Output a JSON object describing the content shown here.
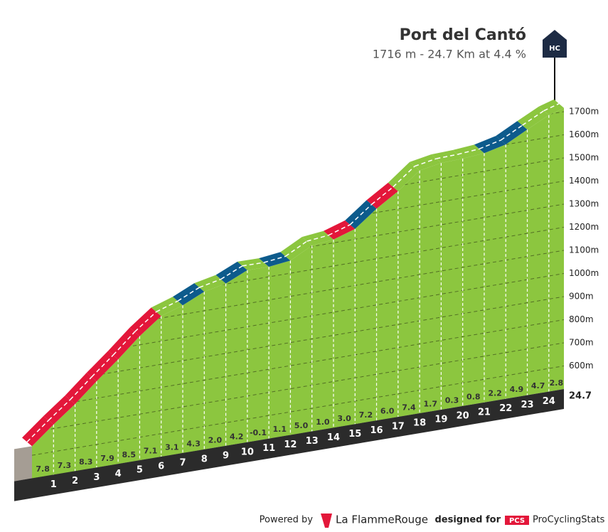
{
  "chart_data": {
    "type": "climb-profile",
    "title": "Port del Cantó",
    "subtitle": "1716 m - 24.7 Km at 4.4 %",
    "category": "HC",
    "summit_elevation": 1716,
    "distance": 24.7,
    "distance_label": "24.7",
    "km": [
      1,
      2,
      3,
      4,
      5,
      6,
      7,
      8,
      9,
      10,
      11,
      12,
      13,
      14,
      15,
      16,
      17,
      18,
      19,
      20,
      21,
      22,
      23,
      24
    ],
    "values": [
      7.8,
      7.3,
      8.3,
      7.9,
      8.5,
      7.1,
      3.1,
      4.3,
      2.0,
      4.2,
      -0.1,
      1.1,
      5.0,
      1.0,
      3.0,
      7.2,
      6.0,
      7.4,
      1.7,
      0.3,
      0.8,
      2.2,
      4.9,
      4.7,
      2.8
    ],
    "value_labels": [
      "7.8",
      "7.3",
      "8.3",
      "7.9",
      "8.5",
      "7.1",
      "3.1",
      "4.3",
      "2.0",
      "4.2",
      "-0.1",
      "1.1",
      "5.0",
      "1.0",
      "3.0",
      "7.2",
      "6.0",
      "7.4",
      "1.7",
      "0.3",
      "0.8",
      "2.2",
      "4.9",
      "4.7",
      "2.8"
    ],
    "colors": [
      "#e3173a",
      "#e3173a",
      "#e3173a",
      "#e3173a",
      "#e3173a",
      "#e3173a",
      "#8cc63f",
      "#0d5b8c",
      "#8cc63f",
      "#0d5b8c",
      "#8cc63f",
      "#0d5b8c",
      "#8cc63f",
      "#8cc63f",
      "#e3173a",
      "#0d5b8c",
      "#e3173a",
      "#8cc63f",
      "#8cc63f",
      "#8cc63f",
      "#8cc63f",
      "#0d5b8c",
      "#0d5b8c",
      "#8cc63f",
      "#8cc63f"
    ],
    "surface_color": "#8cc63f",
    "ylim": [
      500,
      1700
    ],
    "yticks": [
      {
        "value": 600,
        "label": "600m"
      },
      {
        "value": 700,
        "label": "700m"
      },
      {
        "value": 800,
        "label": "800m"
      },
      {
        "value": 900,
        "label": "900m"
      },
      {
        "value": 1000,
        "label": "1000m"
      },
      {
        "value": 1100,
        "label": "1100m"
      },
      {
        "value": 1200,
        "label": "1200m"
      },
      {
        "value": 1300,
        "label": "1300m"
      },
      {
        "value": 1400,
        "label": "1400m"
      },
      {
        "value": 1500,
        "label": "1500m"
      },
      {
        "value": 1600,
        "label": "1600m"
      },
      {
        "value": 1700,
        "label": "1700m"
      }
    ],
    "grid": true
  },
  "footer": {
    "powered": "Powered by",
    "brand": "La FlammeRouge",
    "designed": "designed for",
    "pcs": "PCS",
    "site": "ProCyclingStats"
  }
}
